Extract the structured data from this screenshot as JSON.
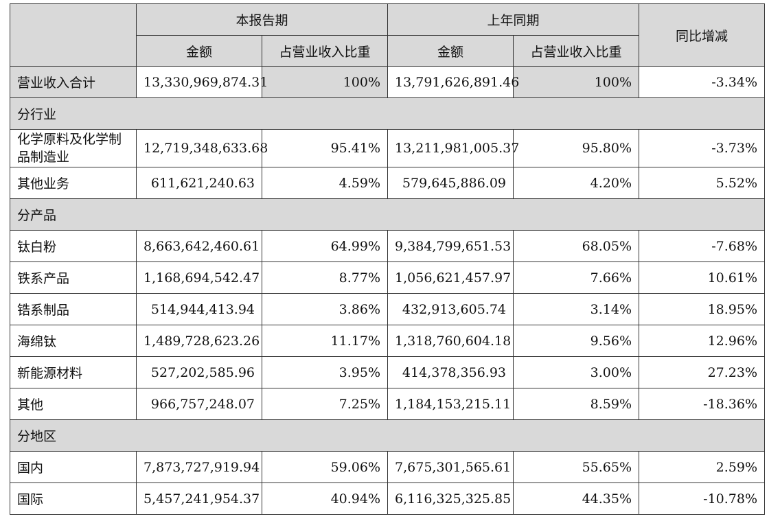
{
  "header": {
    "current_period": "本报告期",
    "prior_period": "上年同期",
    "yoy_change": "同比增减",
    "amount": "金额",
    "revenue_share": "占营业收入比重"
  },
  "total": {
    "label": "营业收入合计",
    "cur_amount": "13,330,969,874.31",
    "cur_share": "100%",
    "prev_amount": "13,791,626,891.46",
    "prev_share": "100%",
    "yoy": "-3.34%"
  },
  "sections": [
    {
      "title": "分行业",
      "rows": [
        {
          "label": "化学原料及化学制品制造业",
          "cur_amount": "12,719,348,633.68",
          "cur_share": "95.41%",
          "prev_amount": "13,211,981,005.37",
          "prev_share": "95.80%",
          "yoy": "-3.73%"
        },
        {
          "label": "其他业务",
          "cur_amount": "611,621,240.63",
          "cur_share": "4.59%",
          "prev_amount": "579,645,886.09",
          "prev_share": "4.20%",
          "yoy": "5.52%"
        }
      ]
    },
    {
      "title": "分产品",
      "rows": [
        {
          "label": "钛白粉",
          "cur_amount": "8,663,642,460.61",
          "cur_share": "64.99%",
          "prev_amount": "9,384,799,651.53",
          "prev_share": "68.05%",
          "yoy": "-7.68%"
        },
        {
          "label": "铁系产品",
          "cur_amount": "1,168,694,542.47",
          "cur_share": "8.77%",
          "prev_amount": "1,056,621,457.97",
          "prev_share": "7.66%",
          "yoy": "10.61%"
        },
        {
          "label": "锆系制品",
          "cur_amount": "514,944,413.94",
          "cur_share": "3.86%",
          "prev_amount": "432,913,605.74",
          "prev_share": "3.14%",
          "yoy": "18.95%"
        },
        {
          "label": "海绵钛",
          "cur_amount": "1,489,728,623.26",
          "cur_share": "11.17%",
          "prev_amount": "1,318,760,604.18",
          "prev_share": "9.56%",
          "yoy": "12.96%"
        },
        {
          "label": "新能源材料",
          "cur_amount": "527,202,585.96",
          "cur_share": "3.95%",
          "prev_amount": "414,378,356.93",
          "prev_share": "3.00%",
          "yoy": "27.23%"
        },
        {
          "label": "其他",
          "cur_amount": "966,757,248.07",
          "cur_share": "7.25%",
          "prev_amount": "1,184,153,215.11",
          "prev_share": "8.59%",
          "yoy": "-18.36%"
        }
      ]
    },
    {
      "title": "分地区",
      "rows": [
        {
          "label": "国内",
          "cur_amount": "7,873,727,919.94",
          "cur_share": "59.06%",
          "prev_amount": "7,675,301,565.61",
          "prev_share": "55.65%",
          "yoy": "2.59%"
        },
        {
          "label": "国际",
          "cur_amount": "5,457,241,954.37",
          "cur_share": "40.94%",
          "prev_amount": "6,116,325,325.85",
          "prev_share": "44.35%",
          "yoy": "-10.78%"
        }
      ]
    }
  ]
}
